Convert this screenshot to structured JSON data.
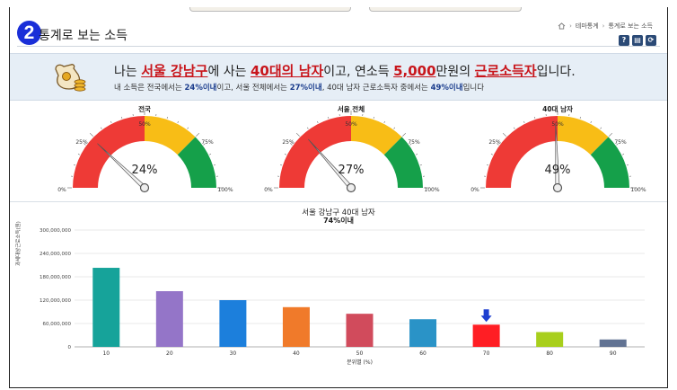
{
  "header": {
    "badge": "2",
    "title": "통계로 보는 소득",
    "breadcrumb": [
      "테마통계",
      "통계로 보는 소득"
    ]
  },
  "tools": [
    {
      "icon": "help-icon",
      "glyph": "?"
    },
    {
      "icon": "print-icon",
      "glyph": "▤"
    },
    {
      "icon": "refresh-icon",
      "glyph": "⟳"
    }
  ],
  "summary": {
    "p1": "나는 ",
    "region": "서울 강남구",
    "p2": "에 사는 ",
    "age": "40대의 남자",
    "p3": "이고, 연소득 ",
    "income": "5,000",
    "p4": "만원의 ",
    "type": "근로소득자",
    "p5": "입니다.",
    "l2_a": "내 소득은 전국에서는 ",
    "l2_b": "24%이내",
    "l2_c": "이고, 서울 전체에서는 ",
    "l2_d": "27%이내",
    "l2_e": ", 40대 남자 근로소득자 중에서는 ",
    "l2_f": "49%이내",
    "l2_g": "입니다"
  },
  "gauges": [
    {
      "title": "전국",
      "value_label": "24%",
      "value": 24
    },
    {
      "title": "서울 전체",
      "value_label": "27%",
      "value": 27
    },
    {
      "title": "40대 남자",
      "value_label": "49%",
      "value": 49
    }
  ],
  "gauge_ticks": [
    "0%",
    "25%",
    "50%",
    "75%",
    "100%"
  ],
  "colors": {
    "red": "#ee3a36",
    "yellow": "#f8bd16",
    "green": "#15a04a",
    "accent": "#c8151b",
    "badge": "#1a2fd8"
  },
  "chart_data": {
    "type": "bar",
    "title": "서울 강남구 40대 남자",
    "subtitle": "74%이내",
    "xlabel": "분위별 (%)",
    "ylabel": "과세대상근로소득(원)",
    "categories": [
      "10",
      "20",
      "30",
      "40",
      "50",
      "60",
      "70",
      "80",
      "90"
    ],
    "values": [
      203000000,
      143000000,
      120000000,
      102000000,
      85000000,
      71000000,
      57000000,
      38000000,
      19000000
    ],
    "colors": [
      "#16a39a",
      "#9475c8",
      "#1c7fdc",
      "#f07a2a",
      "#d14b5c",
      "#2a93c7",
      "#ff1e24",
      "#a8cf1c",
      "#627393"
    ],
    "highlight_index": 6,
    "ylim": [
      0,
      300000000
    ],
    "yticks": [
      "0",
      "60,000,000",
      "120,000,000",
      "180,000,000",
      "240,000,000",
      "300,000,000"
    ],
    "grid": true
  }
}
